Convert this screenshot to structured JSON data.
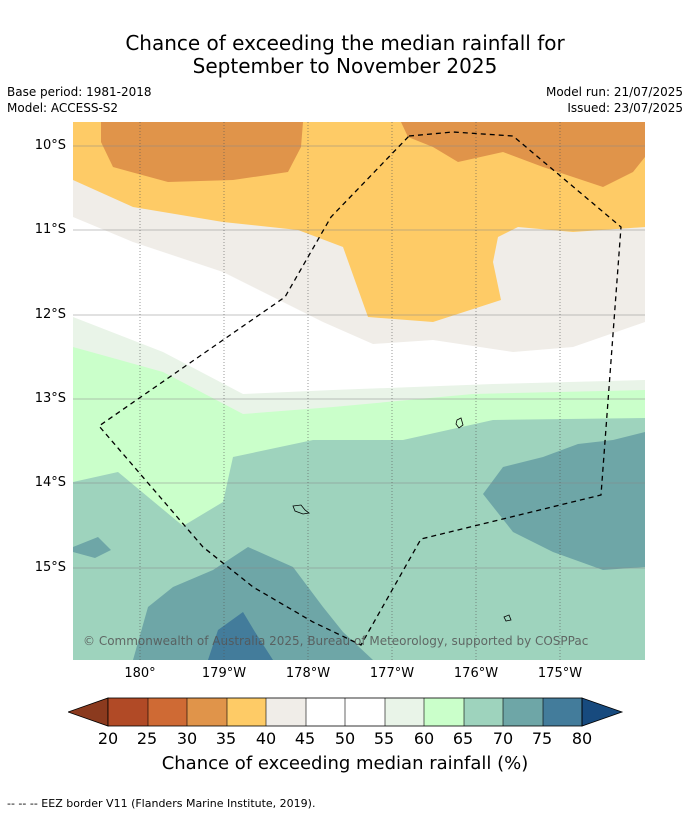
{
  "title_line1": "Chance of exceeding the median rainfall for",
  "title_line2": "September to November 2025",
  "meta": {
    "base_period": "Base period: 1981-2018",
    "model": "Model: ACCESS-S2",
    "model_run": "Model run: 21/07/2025",
    "issued": "Issued: 23/07/2025"
  },
  "latitude_labels": [
    "10°S",
    "11°S",
    "12°S",
    "13°S",
    "14°S",
    "15°S"
  ],
  "longitude_labels": [
    "180°",
    "179°W",
    "178°W",
    "177°W",
    "176°W",
    "175°W"
  ],
  "copyright": "© Commonwealth of Australia 2025, Bureau of Meteorology, supported by COSPPac",
  "colorbar": {
    "ticks": [
      "20",
      "25",
      "30",
      "35",
      "40",
      "45",
      "50",
      "55",
      "60",
      "65",
      "70",
      "75",
      "80"
    ],
    "colors": {
      "lt20": "#8b3a1e",
      "20-25": "#b14a26",
      "25-30": "#cf6a34",
      "30-35": "#e0944a",
      "35-40": "#fecb66",
      "40-45": "#f0ede8",
      "45-50": "#ffffff",
      "50-55": "#ffffff",
      "55-60": "#e9f4e8",
      "60-65": "#caffca",
      "65-70": "#9ed3bd",
      "70-75": "#6ea6a7",
      "75-80": "#437c9b",
      "gt80": "#174a7e"
    },
    "label": "Chance of exceeding median rainfall (%)"
  },
  "footer": "--  --  -- EEZ border V11 (Flanders Marine Institute, 2019)."
}
